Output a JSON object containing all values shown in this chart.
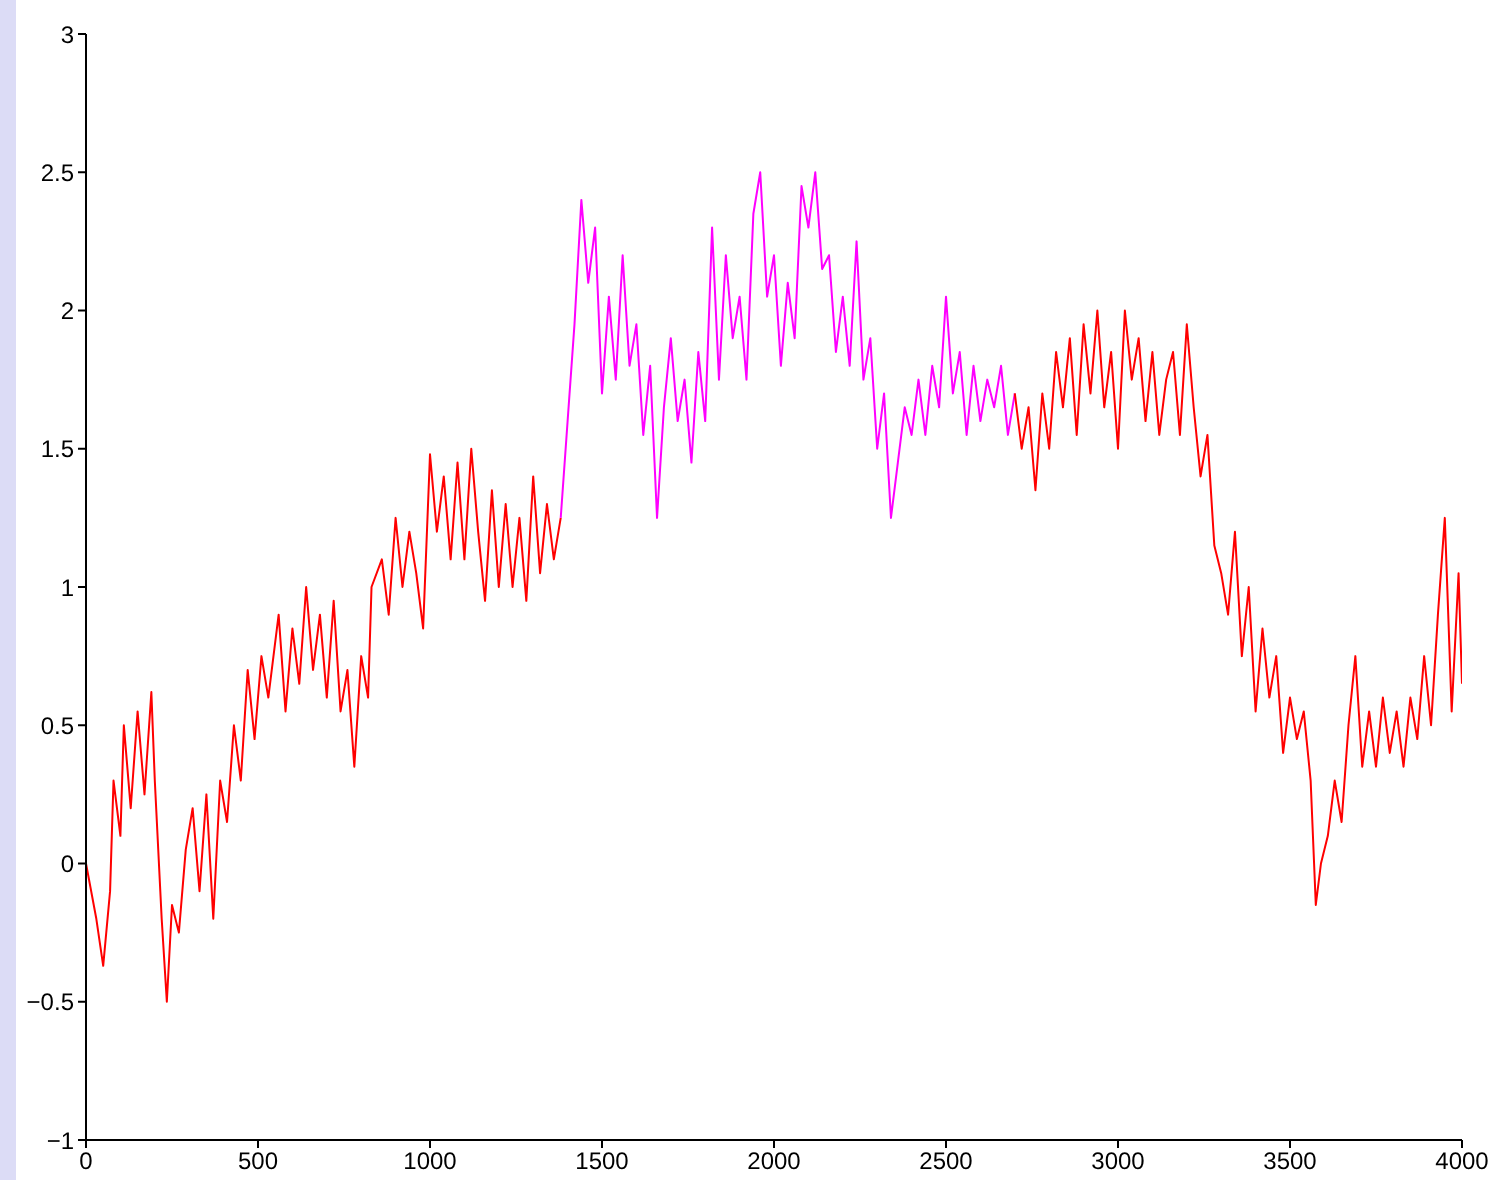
{
  "chart_data": {
    "type": "line",
    "xlim": [
      0,
      4000
    ],
    "xticks": [
      0,
      500,
      1000,
      1500,
      2000,
      2500,
      3000,
      3500,
      4000
    ],
    "ylim": [
      -1,
      3
    ],
    "yticks": [
      -1,
      -0.5,
      0,
      0.5,
      1,
      1.5,
      2,
      2.5,
      3
    ],
    "grid": false,
    "marker": "none",
    "line_style": "solid",
    "series": [
      {
        "color": "#ff0000",
        "x": [
          0,
          30,
          50,
          70,
          80,
          100,
          110,
          130,
          150,
          170,
          190,
          200,
          220,
          235,
          250,
          270,
          290,
          310,
          330,
          350,
          370,
          390,
          410,
          430,
          450,
          470,
          490,
          510,
          530,
          560,
          580,
          600,
          620,
          640,
          660,
          680,
          700,
          720,
          740,
          760,
          780,
          800,
          820,
          830,
          860,
          880,
          900,
          920,
          940,
          960,
          980,
          1000,
          1020,
          1040,
          1060,
          1080,
          1100,
          1120,
          1140,
          1160,
          1180,
          1200,
          1220,
          1240,
          1260,
          1280,
          1300,
          1320,
          1340,
          1360,
          1380
        ],
        "values": [
          0,
          -0.2,
          -0.37,
          -0.1,
          0.3,
          0.1,
          0.5,
          0.2,
          0.55,
          0.25,
          0.62,
          0.3,
          -0.2,
          -0.5,
          -0.15,
          -0.25,
          0.05,
          0.2,
          -0.1,
          0.25,
          -0.2,
          0.3,
          0.15,
          0.5,
          0.3,
          0.7,
          0.45,
          0.75,
          0.6,
          0.9,
          0.55,
          0.85,
          0.65,
          1,
          0.7,
          0.9,
          0.6,
          0.95,
          0.55,
          0.7,
          0.35,
          0.75,
          0.6,
          1,
          1.1,
          0.9,
          1.25,
          1,
          1.2,
          1.05,
          0.85,
          1.48,
          1.2,
          1.4,
          1.1,
          1.45,
          1.1,
          1.5,
          1.2,
          0.95,
          1.35,
          1,
          1.3,
          1,
          1.25,
          0.95,
          1.4,
          1.05,
          1.3,
          1.1,
          1.25
        ]
      },
      {
        "color": "#ff00ff",
        "x": [
          1380,
          1400,
          1420,
          1440,
          1460,
          1480,
          1500,
          1520,
          1540,
          1560,
          1580,
          1600,
          1620,
          1640,
          1660,
          1680,
          1700,
          1720,
          1740,
          1760,
          1780,
          1800,
          1820,
          1840,
          1860,
          1880,
          1900,
          1920,
          1940,
          1960,
          1980,
          2000,
          2020,
          2040,
          2060,
          2080,
          2100,
          2120,
          2140,
          2160,
          2180,
          2200,
          2220,
          2240,
          2260,
          2280,
          2300,
          2320,
          2340,
          2360,
          2380,
          2400,
          2420,
          2440,
          2460,
          2480,
          2500,
          2520,
          2540,
          2560,
          2580,
          2600,
          2620,
          2640,
          2660,
          2680,
          2700
        ],
        "values": [
          1.25,
          1.6,
          1.95,
          2.4,
          2.1,
          2.3,
          1.7,
          2.05,
          1.75,
          2.2,
          1.8,
          1.95,
          1.55,
          1.8,
          1.25,
          1.65,
          1.9,
          1.6,
          1.75,
          1.45,
          1.85,
          1.6,
          2.3,
          1.75,
          2.2,
          1.9,
          2.05,
          1.75,
          2.35,
          2.5,
          2.05,
          2.2,
          1.8,
          2.1,
          1.9,
          2.45,
          2.3,
          2.5,
          2.15,
          2.2,
          1.85,
          2.05,
          1.8,
          2.25,
          1.75,
          1.9,
          1.5,
          1.7,
          1.25,
          1.45,
          1.65,
          1.55,
          1.75,
          1.55,
          1.8,
          1.65,
          2.05,
          1.7,
          1.85,
          1.55,
          1.8,
          1.6,
          1.75,
          1.65,
          1.8,
          1.55,
          1.7
        ]
      },
      {
        "color": "#ff0000",
        "x": [
          2700,
          2720,
          2740,
          2760,
          2780,
          2800,
          2820,
          2840,
          2860,
          2880,
          2900,
          2920,
          2940,
          2960,
          2980,
          3000,
          3020,
          3040,
          3060,
          3080,
          3100,
          3120,
          3140,
          3160,
          3180,
          3200,
          3220,
          3240,
          3260,
          3280,
          3300,
          3320,
          3340,
          3360,
          3380,
          3400,
          3420,
          3440,
          3460,
          3480,
          3500,
          3520,
          3540,
          3560,
          3575,
          3590,
          3610,
          3630,
          3650,
          3670,
          3690,
          3710,
          3730,
          3750,
          3770,
          3790,
          3810,
          3830,
          3850,
          3870,
          3890,
          3910,
          3930,
          3950,
          3970,
          3990,
          4000
        ],
        "values": [
          1.7,
          1.5,
          1.65,
          1.35,
          1.7,
          1.5,
          1.85,
          1.65,
          1.9,
          1.55,
          1.95,
          1.7,
          2,
          1.65,
          1.85,
          1.5,
          2,
          1.75,
          1.9,
          1.6,
          1.85,
          1.55,
          1.75,
          1.85,
          1.55,
          1.95,
          1.65,
          1.4,
          1.55,
          1.15,
          1.05,
          0.9,
          1.2,
          0.75,
          1,
          0.55,
          0.85,
          0.6,
          0.75,
          0.4,
          0.6,
          0.45,
          0.55,
          0.3,
          -0.15,
          0,
          0.1,
          0.3,
          0.15,
          0.5,
          0.75,
          0.35,
          0.55,
          0.35,
          0.6,
          0.4,
          0.55,
          0.35,
          0.6,
          0.45,
          0.75,
          0.5,
          0.9,
          1.25,
          0.55,
          1.05,
          0.65
        ]
      }
    ]
  }
}
